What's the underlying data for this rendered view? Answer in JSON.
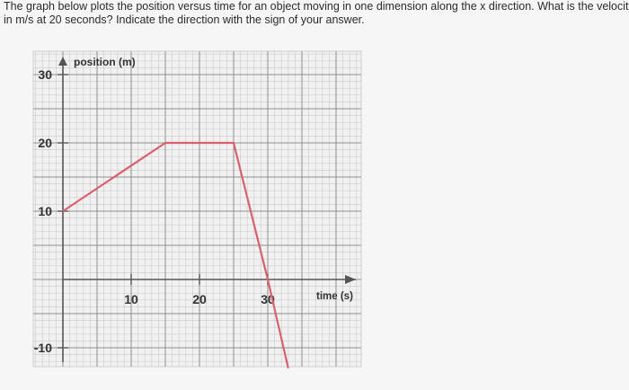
{
  "question": {
    "line1": "The graph below plots the position versus time for an object moving in one dimension along the x direction. What is the velocity",
    "line2": "in m/s at 20 seconds? Indicate the direction with the sign of your answer."
  },
  "chart_data": {
    "type": "line",
    "ylabel": "position (m)",
    "xlabel": "time (s)",
    "x_ticks": [
      10,
      20,
      30
    ],
    "y_ticks": [
      30,
      20,
      10,
      -10
    ],
    "xlim": [
      -4,
      33
    ],
    "ylim": [
      -14,
      32
    ],
    "grid": true,
    "series": [
      {
        "x": [
          0,
          15,
          25,
          30,
          33
        ],
        "y": [
          10,
          20,
          20,
          0,
          -13
        ],
        "color": "#d9606e"
      }
    ]
  }
}
